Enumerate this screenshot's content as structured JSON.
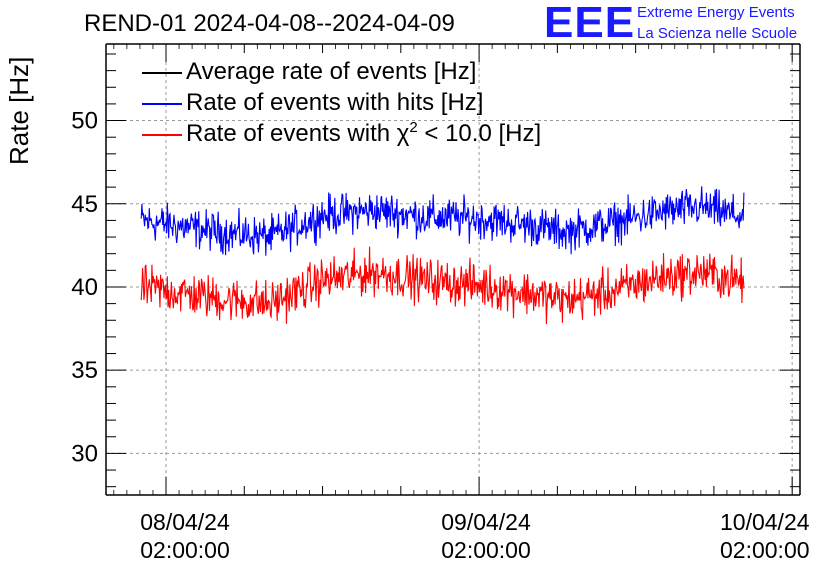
{
  "chart_data": {
    "type": "line",
    "title": "REND-01 2024-04-08--2024-04-09",
    "ylabel": "Rate [Hz]",
    "xlabel": "",
    "ylim": [
      27.5,
      54.6
    ],
    "xlim_hours": [
      -4.6,
      48.6
    ],
    "yticks": [
      30,
      35,
      40,
      45,
      50
    ],
    "xticks": [
      {
        "hours": 0,
        "line1": "08/04/24",
        "line2": "02:00:00"
      },
      {
        "hours": 24,
        "line1": "09/04/24",
        "line2": "02:00:00"
      },
      {
        "hours": 48,
        "line1": "10/04/24",
        "line2": "02:00:00"
      }
    ],
    "grid": true,
    "legend_position": "top-left",
    "series": [
      {
        "name": "Average rate of events [Hz]",
        "color": "#000000",
        "x_range_hours": [
          -1.9,
          44.3
        ],
        "values": []
      },
      {
        "name": "Rate of events with hits [Hz]",
        "color": "#0000ff",
        "x_range_hours": [
          -1.9,
          44.3
        ],
        "mean_trend": [
          {
            "h": -1.9,
            "v": 44.0
          },
          {
            "h": 4,
            "v": 43.3
          },
          {
            "h": 8,
            "v": 43.0
          },
          {
            "h": 12,
            "v": 44.3
          },
          {
            "h": 16,
            "v": 44.6
          },
          {
            "h": 20,
            "v": 44.2
          },
          {
            "h": 24,
            "v": 44.1
          },
          {
            "h": 28,
            "v": 43.7
          },
          {
            "h": 30.5,
            "v": 43.3
          },
          {
            "h": 34,
            "v": 43.8
          },
          {
            "h": 38,
            "v": 44.5
          },
          {
            "h": 41,
            "v": 44.8
          },
          {
            "h": 44.3,
            "v": 44.2
          }
        ],
        "noise_amplitude": 0.9
      },
      {
        "name": "Rate of events with χ² < 10.0 [Hz]",
        "color": "#ff0000",
        "x_range_hours": [
          -1.9,
          44.3
        ],
        "mean_trend": [
          {
            "h": -1.9,
            "v": 40.0
          },
          {
            "h": 4,
            "v": 39.3
          },
          {
            "h": 8,
            "v": 39.0
          },
          {
            "h": 12,
            "v": 40.4
          },
          {
            "h": 16,
            "v": 40.9
          },
          {
            "h": 20,
            "v": 40.4
          },
          {
            "h": 24,
            "v": 40.1
          },
          {
            "h": 28,
            "v": 39.6
          },
          {
            "h": 30.5,
            "v": 39.2
          },
          {
            "h": 34,
            "v": 39.7
          },
          {
            "h": 38,
            "v": 40.6
          },
          {
            "h": 41,
            "v": 40.9
          },
          {
            "h": 44.3,
            "v": 40.3
          }
        ],
        "noise_amplitude": 1.0
      }
    ],
    "legend": [
      {
        "label": "Average rate of events [Hz]",
        "color": "#000000"
      },
      {
        "label": "Rate of events with hits [Hz]",
        "color": "#0000ff"
      },
      {
        "label_pre": "Rate of events with ",
        "label_chi": "χ",
        "label_sup": "2",
        "label_post": " < 10.0 [Hz]",
        "color": "#ff0000"
      }
    ]
  },
  "logo": {
    "mark": "EEE",
    "line1": "Extreme Energy Events",
    "line2": "La Scienza nelle Scuole",
    "color": "#1a1aff"
  }
}
